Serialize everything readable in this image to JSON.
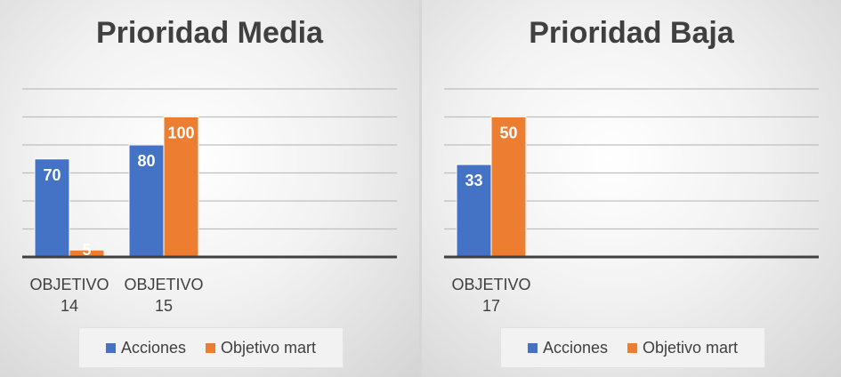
{
  "colors": {
    "acciones": "#4472c4",
    "objetivo": "#ed7d31"
  },
  "chart_data": [
    {
      "type": "bar",
      "title": "Prioridad Media",
      "categories": [
        [
          "OBJETIVO",
          "14"
        ],
        [
          "OBJETIVO",
          "15"
        ]
      ],
      "series": [
        {
          "name": "Acciones",
          "values": [
            70,
            80
          ]
        },
        {
          "name": "Objetivo mart",
          "values": [
            5,
            100
          ]
        }
      ],
      "ylim": [
        0,
        100
      ],
      "grid": true,
      "legend": "bottom"
    },
    {
      "type": "bar",
      "title": "Prioridad Baja",
      "categories": [
        [
          "OBJETIVO",
          "17"
        ]
      ],
      "series": [
        {
          "name": "Acciones",
          "values": [
            33
          ]
        },
        {
          "name": "Objetivo mart",
          "values": [
            50
          ]
        }
      ],
      "ylim": [
        0,
        50
      ],
      "grid": true,
      "legend": "bottom"
    }
  ]
}
